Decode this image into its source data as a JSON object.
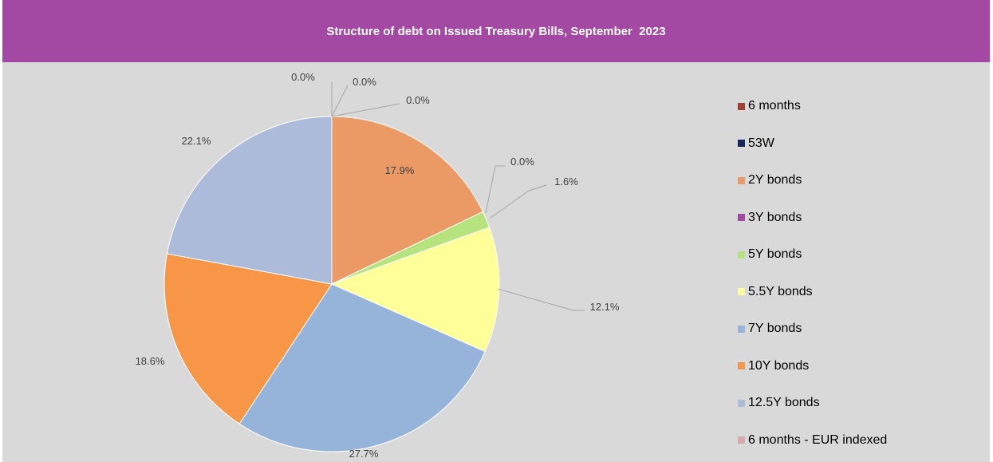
{
  "chart_data": {
    "type": "pie",
    "title": "Structure of debt on Issued Treasury Bills, September  2023",
    "categories": [
      "6 months",
      "53W",
      "2Y bonds",
      "3Y bonds",
      "5Y bonds",
      "5.5Y bonds",
      "7Y bonds",
      "10Y bonds",
      "12.5Y bonds",
      "6 months - EUR indexed"
    ],
    "values": [
      0.0,
      0.0,
      17.9,
      0.0,
      1.6,
      12.1,
      27.7,
      18.6,
      22.1,
      0.0
    ],
    "data_labels": [
      "0.0%",
      "0.0%",
      "17.9%",
      "0.0%",
      "1.6%",
      "12.1%",
      "27.7%",
      "18.6%",
      "22.1%",
      "0.0%"
    ],
    "colors": [
      "#a5402f",
      "#17285e",
      "#eb9a65",
      "#a349a4",
      "#b6e37e",
      "#ffff99",
      "#96b3d9",
      "#f79646",
      "#acbbd9",
      "#d9a9a9"
    ],
    "legend_position": "right",
    "unit": "%"
  }
}
